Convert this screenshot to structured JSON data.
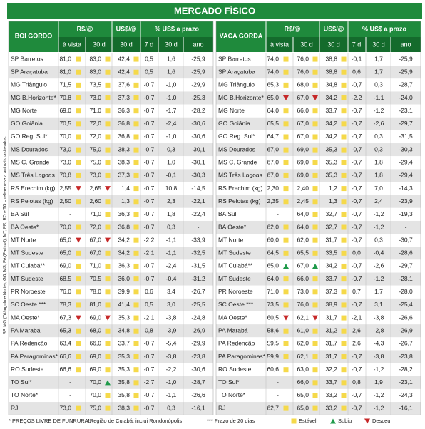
{
  "title": "MERCADO FÍSICO",
  "side_note": "SP, MG (Triângulo e Norte), GO, MS, PA (Paritual), MT, PR, RO e TO = referem-se a animais rastreados.",
  "footnotes": [
    "* PREÇOS LIVRE DE FUNRURAL",
    "**Região de Cuiabá, inclui Rondonópolis",
    "*** Prazo de 20 dias"
  ],
  "legend": [
    "Estável",
    "Subiu",
    "Desceu"
  ],
  "tables": [
    {
      "name": "BOI GORDO",
      "header": [
        "R$/@",
        "US$/@",
        "% US$ a prazo"
      ],
      "subheader": [
        "à vista",
        "30 d",
        "30 d",
        "7 d",
        "30 d",
        "ano"
      ],
      "rows": [
        {
          "cells": [
            "SP Barretos",
            "81,0",
            "83,0",
            "42,4",
            "0,5",
            "1,6",
            "-25,9"
          ],
          "marks": [
            "Estável",
            "Estável",
            "Estável"
          ]
        },
        {
          "cells": [
            "SP Araçatuba",
            "81,0",
            "83,0",
            "42,4",
            "0,5",
            "1,6",
            "-25,9"
          ],
          "marks": [
            "Estável",
            "Estável",
            "Estável"
          ]
        },
        {
          "cells": [
            "MG Triângulo",
            "71,5",
            "73,5",
            "37,6",
            "-0,7",
            "-1,0",
            "-29,9"
          ],
          "marks": [
            "Estável",
            "Estável",
            "Estável"
          ]
        },
        {
          "cells": [
            "MG B.Horizonte*",
            "70,8",
            "73,0",
            "37,3",
            "-0,7",
            "-1,0",
            "-25,3"
          ],
          "marks": [
            "Estável",
            "Estável",
            "Estável"
          ]
        },
        {
          "cells": [
            "MG Norte",
            "69,0",
            "71,0",
            "36,3",
            "-0,7",
            "-1,7",
            "-28,2"
          ],
          "marks": [
            "Estável",
            "Estável",
            "Estável"
          ]
        },
        {
          "cells": [
            "GO Goiânia",
            "70,5",
            "72,0",
            "36,8",
            "-0,7",
            "-2,4",
            "-30,6"
          ],
          "marks": [
            "Estável",
            "Estável",
            "Estável"
          ]
        },
        {
          "cells": [
            "GO Reg. Sul*",
            "70,0",
            "72,0",
            "36,8",
            "-0,7",
            "-1,0",
            "-30,6"
          ],
          "marks": [
            "Estável",
            "Estável",
            "Estável"
          ]
        },
        {
          "cells": [
            "MS Dourados",
            "73,0",
            "75,0",
            "38,3",
            "-0,7",
            "0,3",
            "-30,1"
          ],
          "marks": [
            "Estável",
            "Estável",
            "Estável"
          ]
        },
        {
          "cells": [
            "MS C. Grande",
            "73,0",
            "75,0",
            "38,3",
            "-0,7",
            "1,0",
            "-30,1"
          ],
          "marks": [
            "Estável",
            "Estável",
            "Estável"
          ]
        },
        {
          "cells": [
            "MS Três Lagoas",
            "70,8",
            "73,0",
            "37,3",
            "-0,7",
            "-0,1",
            "-30,3"
          ],
          "marks": [
            "Estável",
            "Estável",
            "Estável"
          ]
        },
        {
          "cells": [
            "RS Erechim (kg)",
            "2,55",
            "2,65",
            "1,4",
            "-0,7",
            "10,8",
            "-14,5"
          ],
          "marks": [
            "Desceu",
            "Desceu",
            "Estável"
          ]
        },
        {
          "cells": [
            "RS Pelotas (kg)",
            "2,50",
            "2,60",
            "1,3",
            "-0,7",
            "2,3",
            "-22,1"
          ],
          "marks": [
            "Estável",
            "Estável",
            "Estável"
          ]
        },
        {
          "cells": [
            "BA Sul",
            "-",
            "71,0",
            "36,3",
            "-0,7",
            "1,8",
            "-22,4"
          ],
          "marks": [
            null,
            "Estável",
            "Estável"
          ]
        },
        {
          "cells": [
            "BA Oeste*",
            "70,0",
            "72,0",
            "36,8",
            "-0,7",
            "0,3",
            "-"
          ],
          "marks": [
            "Estável",
            "Estável",
            "Estável"
          ]
        },
        {
          "cells": [
            "MT Norte",
            "65,0",
            "67,0",
            "34,2",
            "-2,2",
            "-1,1",
            "-33,9"
          ],
          "marks": [
            "Desceu",
            "Desceu",
            "Estável"
          ]
        },
        {
          "cells": [
            "MT Sudeste",
            "65,0",
            "67,0",
            "34,2",
            "-2,1",
            "-1,1",
            "-32,5"
          ],
          "marks": [
            "Estável",
            "Estável",
            "Estável"
          ]
        },
        {
          "cells": [
            "MT Cuiabá**",
            "69,0",
            "71,0",
            "36,3",
            "-0,7",
            "-2,4",
            "-31,5"
          ],
          "marks": [
            "Estável",
            "Estável",
            "Estável"
          ]
        },
        {
          "cells": [
            "MT Sudeste",
            "68,5",
            "70,5",
            "36,0",
            "-0,7",
            "-0,4",
            "-31,2"
          ],
          "marks": [
            "Estável",
            "Estável",
            "Estável"
          ]
        },
        {
          "cells": [
            "PR Noroeste",
            "76,0",
            "78,0",
            "39,9",
            "0,6",
            "3,4",
            "-26,7"
          ],
          "marks": [
            "Estável",
            "Estável",
            "Estável"
          ]
        },
        {
          "cells": [
            "SC Oeste ***",
            "78,3",
            "81,0",
            "41,4",
            "0,5",
            "3,0",
            "-25,5"
          ],
          "marks": [
            "Estável",
            "Estável",
            "Estável"
          ]
        },
        {
          "cells": [
            "MA Oeste*",
            "67,3",
            "69,0",
            "35,3",
            "-2,1",
            "-3,8",
            "-24,8"
          ],
          "marks": [
            "Desceu",
            "Desceu",
            "Estável"
          ]
        },
        {
          "cells": [
            "PA Marabá",
            "65,3",
            "68,0",
            "34,8",
            "0,8",
            "-3,9",
            "-26,9"
          ],
          "marks": [
            "Estável",
            "Estável",
            "Estável"
          ]
        },
        {
          "cells": [
            "PA Redenção",
            "63,4",
            "66,0",
            "33,7",
            "-0,7",
            "-5,4",
            "-29,9"
          ],
          "marks": [
            "Estável",
            "Estável",
            "Estável"
          ]
        },
        {
          "cells": [
            "PA Paragominas*",
            "66,6",
            "69,0",
            "35,3",
            "-0,7",
            "-3,8",
            "-23,8"
          ],
          "marks": [
            "Estável",
            "Estável",
            "Estável"
          ]
        },
        {
          "cells": [
            "RO Sudeste",
            "66,6",
            "69,0",
            "35,3",
            "-0,7",
            "-2,2",
            "-30,6"
          ],
          "marks": [
            "Estável",
            "Estável",
            "Estável"
          ]
        },
        {
          "cells": [
            "TO Sul*",
            "-",
            "70,0",
            "35,8",
            "-2,7",
            "-1,0",
            "-28,7"
          ],
          "marks": [
            null,
            "Subiu",
            "Estável"
          ]
        },
        {
          "cells": [
            "TO Norte*",
            "-",
            "70,0",
            "35,8",
            "-0,7",
            "-1,1",
            "-26,6"
          ],
          "marks": [
            null,
            "Estável",
            "Estável"
          ]
        },
        {
          "cells": [
            "RJ",
            "73,0",
            "75,0",
            "38,3",
            "-0,7",
            "0,3",
            "-16,1"
          ],
          "marks": [
            "Estável",
            "Estável",
            "Estável"
          ]
        }
      ]
    },
    {
      "name": "VACA GORDA",
      "header": [
        "R$/@",
        "US$/@",
        "% US$ a prazo"
      ],
      "subheader": [
        "à vista",
        "30 d",
        "30 d",
        "7 d",
        "30 d",
        "ano"
      ],
      "rows": [
        {
          "cells": [
            "SP Barretos",
            "74,0",
            "76,0",
            "38,8",
            "-0,1",
            "1,7",
            "-25,9"
          ],
          "marks": [
            "Estável",
            "Estável",
            "Estável"
          ]
        },
        {
          "cells": [
            "SP Araçatuba",
            "74,0",
            "76,0",
            "38,8",
            "0,6",
            "1,7",
            "-25,9"
          ],
          "marks": [
            "Estável",
            "Estável",
            "Estável"
          ]
        },
        {
          "cells": [
            "MG Triângulo",
            "65,3",
            "68,0",
            "34,8",
            "-0,7",
            "0,3",
            "-28,7"
          ],
          "marks": [
            "Estável",
            "Estável",
            "Estável"
          ]
        },
        {
          "cells": [
            "MG B.Horizonte*",
            "65,0",
            "67,0",
            "34,2",
            "-2,2",
            "-1,1",
            "-24,0"
          ],
          "marks": [
            "Desceu",
            "Desceu",
            "Estável"
          ]
        },
        {
          "cells": [
            "MG Norte",
            "64,0",
            "66,0",
            "33,7",
            "-0,7",
            "-1,2",
            "-23,1"
          ],
          "marks": [
            "Estável",
            "Estável",
            "Estável"
          ]
        },
        {
          "cells": [
            "GO Goiânia",
            "65,5",
            "67,0",
            "34,2",
            "-0,7",
            "-2,6",
            "-29,7"
          ],
          "marks": [
            "Estável",
            "Estável",
            "Estável"
          ]
        },
        {
          "cells": [
            "GO Reg. Sul*",
            "64,7",
            "67,0",
            "34,2",
            "-0,7",
            "0,3",
            "-31,5"
          ],
          "marks": [
            "Estável",
            "Estável",
            "Estável"
          ]
        },
        {
          "cells": [
            "MS Dourados",
            "67,0",
            "69,0",
            "35,3",
            "-0,7",
            "0,3",
            "-30,3"
          ],
          "marks": [
            "Estável",
            "Estável",
            "Estável"
          ]
        },
        {
          "cells": [
            "MS C. Grande",
            "67,0",
            "69,0",
            "35,3",
            "-0,7",
            "1,8",
            "-29,4"
          ],
          "marks": [
            "Estável",
            "Estável",
            "Estável"
          ]
        },
        {
          "cells": [
            "MS Três Lagoas",
            "67,0",
            "69,0",
            "35,3",
            "-0,7",
            "1,8",
            "-29,4"
          ],
          "marks": [
            "Estável",
            "Estável",
            "Estável"
          ]
        },
        {
          "cells": [
            "RS Erechim (kg)",
            "2,30",
            "2,40",
            "1,2",
            "-0,7",
            "7,0",
            "-14,3"
          ],
          "marks": [
            "Estável",
            "Estável",
            "Estável"
          ]
        },
        {
          "cells": [
            "RS Pelotas (kg)",
            "2,35",
            "2,45",
            "1,3",
            "-0,7",
            "2,4",
            "-23,9"
          ],
          "marks": [
            "Estável",
            "Estável",
            "Estável"
          ]
        },
        {
          "cells": [
            "BA Sul",
            "-",
            "64,0",
            "32,7",
            "-0,7",
            "-1,2",
            "-19,3"
          ],
          "marks": [
            null,
            "Estável",
            "Estável"
          ]
        },
        {
          "cells": [
            "BA Oeste*",
            "62,0",
            "64,0",
            "32,7",
            "-0,7",
            "-1,2",
            "-"
          ],
          "marks": [
            "Estável",
            "Estável",
            "Estável"
          ]
        },
        {
          "cells": [
            "MT Norte",
            "60,0",
            "62,0",
            "31,7",
            "-0,7",
            "0,3",
            "-30,7"
          ],
          "marks": [
            "Estável",
            "Estável",
            "Estável"
          ]
        },
        {
          "cells": [
            "MT Sudeste",
            "64,5",
            "65,5",
            "33,5",
            "0,0",
            "-0,4",
            "-28,6"
          ],
          "marks": [
            "Estável",
            "Estável",
            "Estável"
          ]
        },
        {
          "cells": [
            "MT Cuiabá**",
            "65,0",
            "67,0",
            "34,2",
            "-0,7",
            "-2,6",
            "-29,7"
          ],
          "marks": [
            "Subiu",
            "Subiu",
            "Estável"
          ]
        },
        {
          "cells": [
            "MT Sudeste",
            "64,0",
            "66,0",
            "33,7",
            "-0,7",
            "-1,2",
            "-28,1"
          ],
          "marks": [
            "Estável",
            "Estável",
            "Estável"
          ]
        },
        {
          "cells": [
            "PR Noroeste",
            "71,0",
            "73,0",
            "37,3",
            "0,7",
            "1,7",
            "-28,0"
          ],
          "marks": [
            "Estável",
            "Estável",
            "Estável"
          ]
        },
        {
          "cells": [
            "SC Oeste ***",
            "73,5",
            "76,0",
            "38,9",
            "-0,7",
            "3,1",
            "-25,4"
          ],
          "marks": [
            "Estável",
            "Estável",
            "Estável"
          ]
        },
        {
          "cells": [
            "MA Oeste*",
            "60,5",
            "62,1",
            "31,7",
            "-2,1",
            "-3,8",
            "-26,6"
          ],
          "marks": [
            "Desceu",
            "Desceu",
            "Estável"
          ]
        },
        {
          "cells": [
            "PA Marabá",
            "58,6",
            "61,0",
            "31,2",
            "2,6",
            "-2,8",
            "-26,9"
          ],
          "marks": [
            "Estável",
            "Estável",
            "Estável"
          ]
        },
        {
          "cells": [
            "PA Redenção",
            "59,5",
            "62,0",
            "31,7",
            "2,6",
            "-4,3",
            "-26,7"
          ],
          "marks": [
            "Estável",
            "Estável",
            "Estável"
          ]
        },
        {
          "cells": [
            "PA Paragominas*",
            "59,9",
            "62,1",
            "31,7",
            "-0,7",
            "-3,8",
            "-23,8"
          ],
          "marks": [
            "Estável",
            "Estável",
            "Estável"
          ]
        },
        {
          "cells": [
            "RO Sudeste",
            "60,6",
            "63,0",
            "32,2",
            "-0,7",
            "-1,2",
            "-28,2"
          ],
          "marks": [
            "Estável",
            "Estável",
            "Estável"
          ]
        },
        {
          "cells": [
            "TO Sul*",
            "-",
            "66,0",
            "33,7",
            "0,8",
            "1,9",
            "-23,1"
          ],
          "marks": [
            null,
            "Estável",
            "Estável"
          ]
        },
        {
          "cells": [
            "TO Norte*",
            "-",
            "65,0",
            "33,2",
            "-0,7",
            "-1,2",
            "-24,3"
          ],
          "marks": [
            null,
            "Estável",
            "Estável"
          ]
        },
        {
          "cells": [
            "RJ",
            "62,7",
            "65,0",
            "33,2",
            "-0,7",
            "-1,2",
            "-16,1"
          ],
          "marks": [
            "Estável",
            "Estável",
            "Estável"
          ]
        }
      ]
    }
  ]
}
